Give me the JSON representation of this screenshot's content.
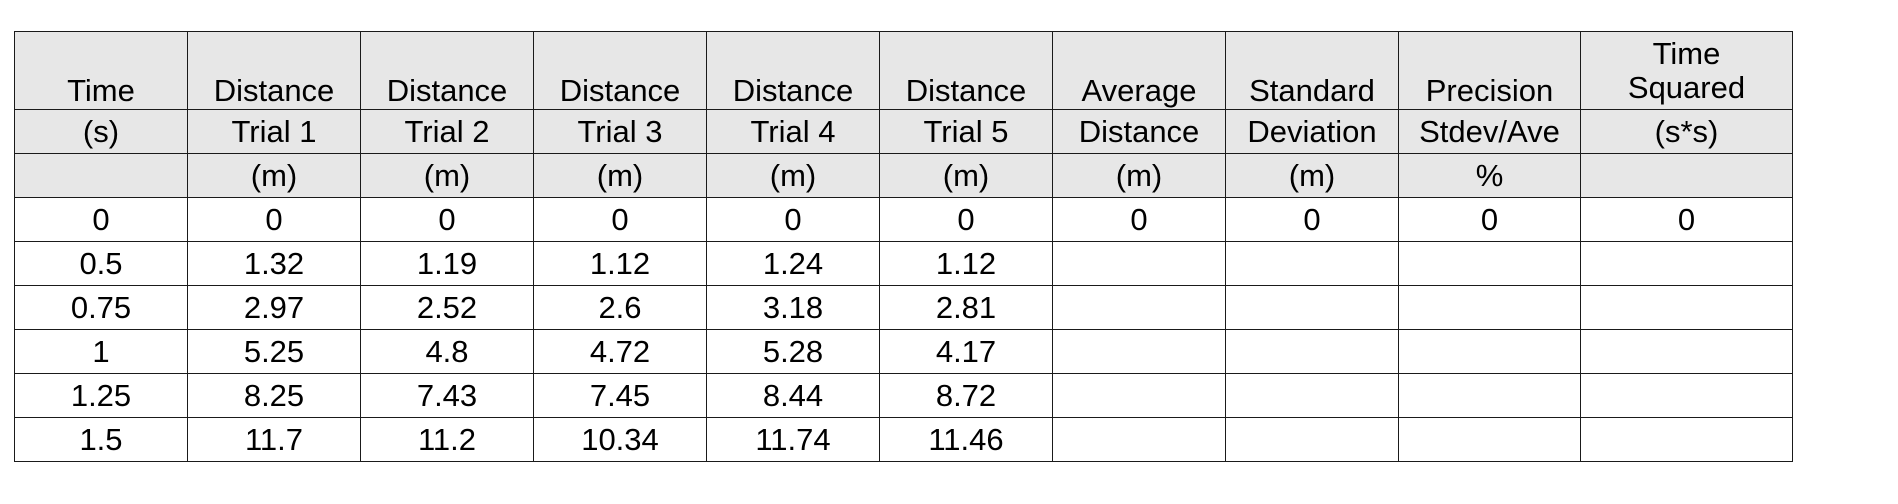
{
  "table": {
    "header_row_1": [
      "Time",
      "Distance",
      "Distance",
      "Distance",
      "Distance",
      "Distance",
      "Average",
      "Standard",
      "Precision"
    ],
    "header_row_1_last": {
      "line1": "Time",
      "line2": "Squared"
    },
    "header_row_2": [
      "(s)",
      "Trial 1",
      "Trial 2",
      "Trial 3",
      "Trial 4",
      "Trial 5",
      "Distance",
      "Deviation",
      "Stdev/Ave",
      "(s*s)"
    ],
    "header_row_3": [
      "",
      "(m)",
      "(m)",
      "(m)",
      "(m)",
      "(m)",
      "(m)",
      "(m)",
      "%",
      ""
    ],
    "rows": [
      [
        "0",
        "0",
        "0",
        "0",
        "0",
        "0",
        "0",
        "0",
        "0",
        "0"
      ],
      [
        "0.5",
        "1.32",
        "1.19",
        "1.12",
        "1.24",
        "1.12",
        "",
        "",
        "",
        ""
      ],
      [
        "0.75",
        "2.97",
        "2.52",
        "2.6",
        "3.18",
        "2.81",
        "",
        "",
        "",
        ""
      ],
      [
        "1",
        "5.25",
        "4.8",
        "4.72",
        "5.28",
        "4.17",
        "",
        "",
        "",
        ""
      ],
      [
        "1.25",
        "8.25",
        "7.43",
        "7.45",
        "8.44",
        "8.72",
        "",
        "",
        "",
        ""
      ],
      [
        "1.5",
        "11.7",
        "11.2",
        "10.34",
        "11.74",
        "11.46",
        "",
        "",
        "",
        ""
      ]
    ]
  },
  "colors": {
    "header_background": "#e7e7e7",
    "body_background": "#ffffff",
    "border": "#1a1a1a"
  }
}
